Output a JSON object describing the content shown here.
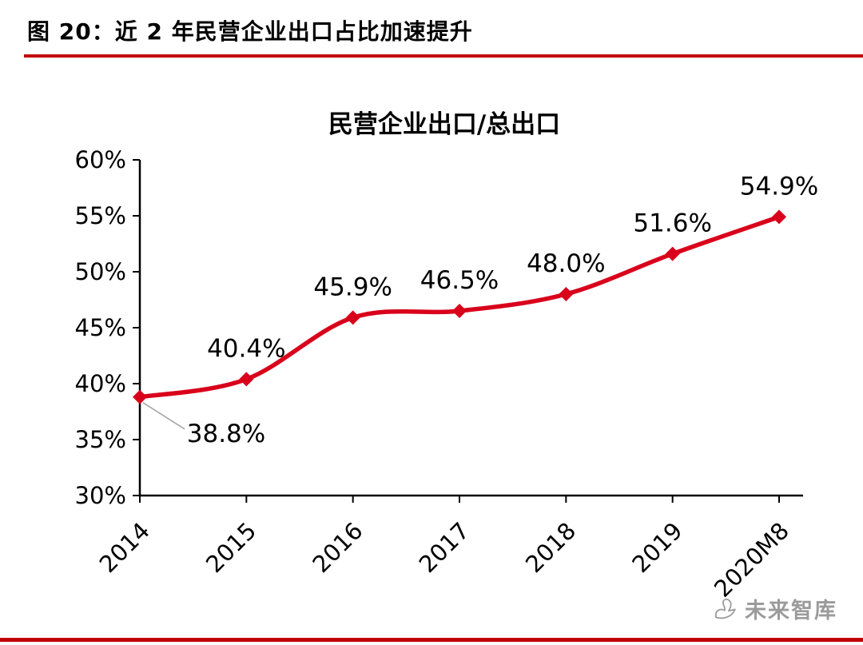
{
  "header": {
    "title": "图 20：近 2 年民营企业出口占比加速提升"
  },
  "watermark": {
    "text": "未来智库",
    "icon": "swan-logo-icon",
    "color": "#9b9b9b"
  },
  "colors": {
    "rule_red": "#c00000",
    "line_red": "#d9001b",
    "leader_gray": "#a6a6a6",
    "axis_black": "#000000"
  },
  "chart_data": {
    "type": "line",
    "title": "民营企业出口/总出口",
    "categories": [
      "2014",
      "2015",
      "2016",
      "2017",
      "2018",
      "2019",
      "2020M8"
    ],
    "values": [
      38.8,
      40.4,
      45.9,
      46.5,
      48.0,
      51.6,
      54.9
    ],
    "point_labels": [
      "38.8%",
      "40.4%",
      "45.9%",
      "46.5%",
      "48.0%",
      "51.6%",
      "54.9%"
    ],
    "ylim": [
      30,
      60
    ],
    "ytick_step": 5,
    "ytick_labels": [
      "30%",
      "35%",
      "40%",
      "45%",
      "50%",
      "55%",
      "60%"
    ],
    "xlabel": "",
    "ylabel": "",
    "grid": false,
    "legend": "none",
    "line_color": "#d9001b",
    "marker": "diamond",
    "smooth": true,
    "first_label_callout": true
  }
}
